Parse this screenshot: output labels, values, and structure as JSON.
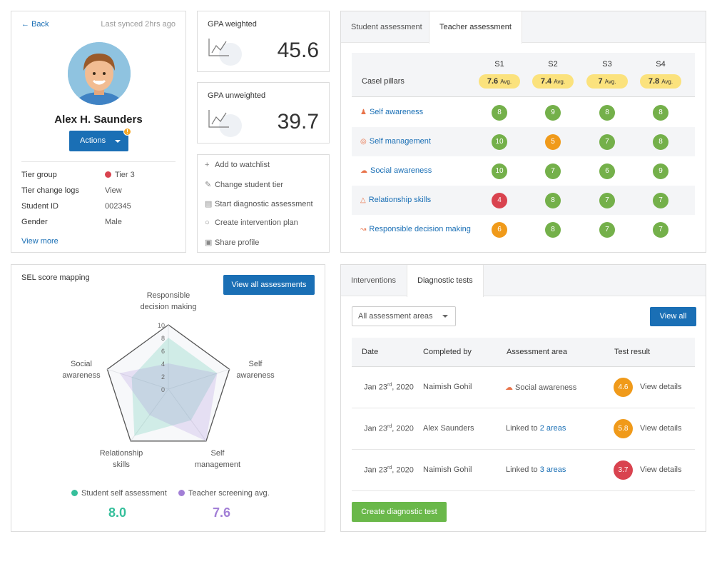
{
  "profile": {
    "back_label": "Back",
    "last_synced": "Last synced 2hrs ago",
    "name": "Alex H. Saunders",
    "actions_label": "Actions",
    "actions_badge": "!",
    "info": [
      {
        "label": "Tier group",
        "value": "Tier 3"
      },
      {
        "label": "Tier change logs",
        "value": "View"
      },
      {
        "label": "Student ID",
        "value": "002345"
      },
      {
        "label": "Gender",
        "value": "Male"
      }
    ],
    "view_more": "View more",
    "tier_color": "#d9434f"
  },
  "gpa": {
    "weighted_label": "GPA weighted",
    "weighted_value": "45.6",
    "unweighted_label": "GPA unweighted",
    "unweighted_value": "39.7"
  },
  "quick_actions": [
    {
      "icon": "plus-icon",
      "label": "Add to watchlist"
    },
    {
      "icon": "pencil-icon",
      "label": "Change student tier"
    },
    {
      "icon": "document-icon",
      "label": "Start diagnostic assessment"
    },
    {
      "icon": "chat-icon",
      "label": "Create intervention plan"
    },
    {
      "icon": "share-icon",
      "label": "Share profile"
    }
  ],
  "assessment": {
    "tabs": [
      "Student assessment",
      "Teacher assessment"
    ],
    "active_tab": "Teacher assessment",
    "pillar_header": "Casel pillars",
    "sessions": [
      {
        "name": "S1",
        "avg": "7.6",
        "avg_label": "Avg."
      },
      {
        "name": "S2",
        "avg": "7.4",
        "avg_label": "Avg."
      },
      {
        "name": "S3",
        "avg": "7",
        "avg_label": "Avg."
      },
      {
        "name": "S4",
        "avg": "7.8",
        "avg_label": "Avg."
      }
    ],
    "pillars": [
      {
        "name": "Self awareness",
        "icon": "person-icon",
        "scores": [
          "8",
          "9",
          "8",
          "8"
        ],
        "colors": [
          "#74b04a",
          "#74b04a",
          "#74b04a",
          "#74b04a"
        ]
      },
      {
        "name": "Self management",
        "icon": "target-icon",
        "scores": [
          "10",
          "5",
          "7",
          "8"
        ],
        "colors": [
          "#74b04a",
          "#f09a1a",
          "#74b04a",
          "#74b04a"
        ]
      },
      {
        "name": "Social awareness",
        "icon": "chat-icon",
        "scores": [
          "10",
          "7",
          "6",
          "9"
        ],
        "colors": [
          "#74b04a",
          "#74b04a",
          "#74b04a",
          "#74b04a"
        ]
      },
      {
        "name": "Relationship skills",
        "icon": "people-icon",
        "scores": [
          "4",
          "8",
          "7",
          "7"
        ],
        "colors": [
          "#d9434f",
          "#74b04a",
          "#74b04a",
          "#74b04a"
        ]
      },
      {
        "name": "Responsible decision making",
        "icon": "chart-icon",
        "scores": [
          "6",
          "8",
          "7",
          "7"
        ],
        "colors": [
          "#f09a1a",
          "#74b04a",
          "#74b04a",
          "#74b04a"
        ]
      }
    ]
  },
  "sel": {
    "title": "SEL score mapping",
    "view_all_label": "View all assessments",
    "axes": [
      {
        "line1": "Responsible",
        "line2": "decision making"
      },
      {
        "line1": "Self",
        "line2": "awareness"
      },
      {
        "line1": "Self",
        "line2": "management"
      },
      {
        "line1": "Relationship",
        "line2": "skills"
      },
      {
        "line1": "Social",
        "line2": "awareness"
      }
    ],
    "ticks": [
      "10",
      "8",
      "6",
      "4",
      "2",
      "0"
    ],
    "legend": [
      {
        "label": "Student self assessment",
        "score": "8.0",
        "color": "#35bf9b"
      },
      {
        "label": "Teacher screening avg.",
        "score": "7.6",
        "color": "#a27fd6"
      }
    ],
    "chart_data": {
      "type": "radar",
      "categories": [
        "Responsible decision making",
        "Self awareness",
        "Self management",
        "Relationship skills",
        "Social awareness"
      ],
      "rmax": 10,
      "series": [
        {
          "name": "Student self assessment",
          "values": [
            8,
            8,
            6,
            9,
            6
          ]
        },
        {
          "name": "Teacher screening avg.",
          "values": [
            4,
            8,
            10,
            5,
            8
          ]
        }
      ]
    }
  },
  "diagnostic": {
    "tabs": [
      "Interventions",
      "Diagnostic tests"
    ],
    "active_tab": "Diagnostic tests",
    "filter_value": "All assessment areas",
    "view_all_label": "View all",
    "columns": [
      "Date",
      "Completed by",
      "Assessment area",
      "Test result"
    ],
    "rows": [
      {
        "date_day": "Jan 23",
        "date_suffix": "rd",
        "date_year": ", 2020",
        "by": "Naimish Gohil",
        "area_prefix": "",
        "area_icon": true,
        "area_text": "Social awareness",
        "area_link": "",
        "result": "4.6",
        "result_color": "#f09a1a",
        "details": "View details"
      },
      {
        "date_day": "Jan 23",
        "date_suffix": "rd",
        "date_year": ", 2020",
        "by": "Alex Saunders",
        "area_prefix": "Linked to ",
        "area_icon": false,
        "area_text": "",
        "area_link": "2 areas",
        "result": "5.8",
        "result_color": "#f09a1a",
        "details": "View details"
      },
      {
        "date_day": "Jan 23",
        "date_suffix": "rd",
        "date_year": ", 2020",
        "by": "Naimish Gohil",
        "area_prefix": "Linked to ",
        "area_icon": false,
        "area_text": "",
        "area_link": "3 areas",
        "result": "3.7",
        "result_color": "#d9434f",
        "details": "View details"
      }
    ],
    "create_label": "Create diagnostic test"
  }
}
